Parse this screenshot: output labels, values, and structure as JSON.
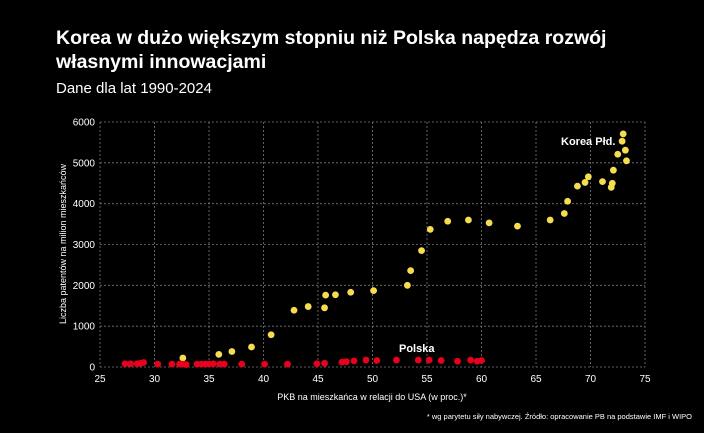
{
  "title": "Korea w dużo większym stopniu niż Polska napędza rozwój własnymi innowacjami",
  "subtitle": "Dane dla lat 1990-2024",
  "footnote": "* wg parytetu siły nabywczej. Źródło: opracowanie PB na podstawie IMF i WIPO",
  "chart_data": {
    "type": "scatter",
    "xlabel": "PKB na mieszkańca w relacji do USA (w proc.)*",
    "ylabel": "Liczba patentów na milion mieszkańców",
    "xlim": [
      25,
      75
    ],
    "ylim": [
      0,
      6000
    ],
    "x_ticks": [
      25,
      30,
      35,
      40,
      45,
      50,
      55,
      60,
      65,
      70,
      75
    ],
    "y_ticks": [
      0,
      1000,
      2000,
      3000,
      4000,
      5000,
      6000
    ],
    "x_tick_labels": [
      "25",
      "30",
      "35",
      "40",
      "45",
      "50",
      "55",
      "60",
      "65",
      "70",
      "75"
    ],
    "y_tick_labels": [
      "0",
      "1000",
      "2000",
      "3000",
      "4000",
      "5000",
      "6000"
    ],
    "grid": true,
    "series": [
      {
        "label": "Korea Płd.",
        "color": "#f5dc50",
        "points": [
          [
            32.6,
            220
          ],
          [
            35.9,
            310
          ],
          [
            37.1,
            380
          ],
          [
            38.9,
            490
          ],
          [
            40.7,
            790
          ],
          [
            42.8,
            1390
          ],
          [
            44.1,
            1480
          ],
          [
            45.6,
            1450
          ],
          [
            45.7,
            1760
          ],
          [
            46.6,
            1770
          ],
          [
            48.0,
            1830
          ],
          [
            50.1,
            1870
          ],
          [
            53.2,
            2000
          ],
          [
            53.5,
            2360
          ],
          [
            54.5,
            2850
          ],
          [
            55.3,
            3370
          ],
          [
            56.9,
            3570
          ],
          [
            58.8,
            3600
          ],
          [
            60.7,
            3530
          ],
          [
            63.3,
            3450
          ],
          [
            66.3,
            3600
          ],
          [
            67.6,
            3760
          ],
          [
            67.9,
            4060
          ],
          [
            68.8,
            4430
          ],
          [
            69.5,
            4520
          ],
          [
            69.8,
            4660
          ],
          [
            71.1,
            4540
          ],
          [
            71.9,
            4400
          ],
          [
            72.0,
            4500
          ],
          [
            72.1,
            4820
          ],
          [
            72.5,
            5210
          ],
          [
            72.9,
            5530
          ],
          [
            73.0,
            5710
          ],
          [
            73.2,
            5310
          ],
          [
            73.3,
            5050
          ]
        ]
      },
      {
        "label": "Polska",
        "color": "#e8001c",
        "points": [
          [
            27.3,
            80
          ],
          [
            27.8,
            80
          ],
          [
            28.4,
            80
          ],
          [
            28.7,
            90
          ],
          [
            29.0,
            110
          ],
          [
            30.3,
            70
          ],
          [
            31.6,
            70
          ],
          [
            32.3,
            70
          ],
          [
            32.6,
            70
          ],
          [
            32.9,
            60
          ],
          [
            33.9,
            70
          ],
          [
            34.3,
            70
          ],
          [
            34.7,
            70
          ],
          [
            35.0,
            70
          ],
          [
            35.4,
            80
          ],
          [
            36.0,
            70
          ],
          [
            36.4,
            70
          ],
          [
            38.0,
            70
          ],
          [
            40.1,
            70
          ],
          [
            42.2,
            70
          ],
          [
            44.9,
            80
          ],
          [
            45.6,
            90
          ],
          [
            47.2,
            120
          ],
          [
            47.6,
            130
          ],
          [
            48.3,
            150
          ],
          [
            49.4,
            170
          ],
          [
            50.4,
            160
          ],
          [
            52.2,
            170
          ],
          [
            54.2,
            170
          ],
          [
            55.2,
            170
          ],
          [
            56.3,
            160
          ],
          [
            57.8,
            140
          ],
          [
            59.0,
            170
          ],
          [
            59.6,
            140
          ],
          [
            60.0,
            160
          ]
        ]
      }
    ]
  }
}
